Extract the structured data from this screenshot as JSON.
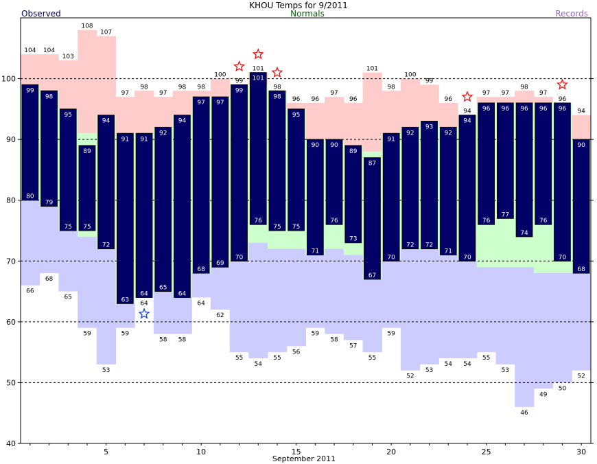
{
  "chart_data": {
    "type": "bar",
    "title": "KHOU Temps for 9/2011",
    "xlabel": "September 2011",
    "ylabel": "",
    "legend": {
      "observed": "Observed",
      "normals": "Normals",
      "records": "Records"
    },
    "colors": {
      "observed": "#000066",
      "normals_label": "#006600",
      "records_label": "#9966cc",
      "normal_fill": "#ccffcc",
      "record_high_fill": "#ffcccc",
      "record_low_fill": "#ccccff",
      "star_high": "#ee1111",
      "star_low": "#1144dd"
    },
    "ylim": [
      40,
      110
    ],
    "xlim": [
      0.5,
      30.5
    ],
    "grid_y": [
      50,
      60,
      70,
      80,
      90,
      100
    ],
    "y_ticks": [
      "40",
      "50",
      "60",
      "70",
      "80",
      "90",
      "100"
    ],
    "x_ticks": [
      "5",
      "10",
      "15",
      "20",
      "25",
      "30"
    ],
    "days": [
      1,
      2,
      3,
      4,
      5,
      6,
      7,
      8,
      9,
      10,
      11,
      12,
      13,
      14,
      15,
      16,
      17,
      18,
      19,
      20,
      21,
      22,
      23,
      24,
      25,
      26,
      27,
      28,
      29,
      30
    ],
    "observed_high": [
      99,
      98,
      95,
      89,
      94,
      91,
      91,
      92,
      94,
      97,
      97,
      99,
      101,
      98,
      95,
      90,
      90,
      89,
      87,
      91,
      92,
      93,
      92,
      94,
      96,
      96,
      96,
      96,
      96,
      90
    ],
    "observed_low": [
      80,
      79,
      75,
      75,
      72,
      63,
      64,
      65,
      64,
      68,
      69,
      70,
      76,
      75,
      75,
      71,
      76,
      73,
      67,
      70,
      72,
      72,
      71,
      70,
      76,
      77,
      74,
      76,
      70,
      68
    ],
    "normal_high": [
      99,
      98,
      95,
      91,
      94,
      91,
      91,
      92,
      94,
      97,
      97,
      99,
      99,
      98,
      95,
      90,
      90,
      89,
      88,
      91,
      92,
      93,
      92,
      94,
      96,
      96,
      96,
      96,
      96,
      90
    ],
    "normal_low": [
      80,
      79,
      75,
      74,
      72,
      63,
      64,
      65,
      64,
      68,
      69,
      70,
      73,
      72,
      72,
      71,
      72,
      71,
      67,
      70,
      72,
      72,
      71,
      70,
      69,
      69,
      69,
      68,
      68,
      68
    ],
    "record_high": [
      104,
      104,
      103,
      108,
      107,
      97,
      98,
      97,
      98,
      98,
      100,
      99,
      101,
      98,
      96,
      96,
      97,
      96,
      101,
      98,
      100,
      99,
      96,
      94,
      97,
      97,
      98,
      97,
      96,
      94
    ],
    "record_low": [
      66,
      68,
      65,
      59,
      53,
      59,
      64,
      58,
      58,
      64,
      62,
      55,
      54,
      55,
      56,
      59,
      58,
      57,
      55,
      59,
      52,
      53,
      54,
      54,
      55,
      53,
      46,
      49,
      50,
      52
    ],
    "record_high_labels": [
      "104",
      "104",
      "103",
      "108",
      "107",
      "97",
      "98",
      "97",
      "98",
      "98",
      "100",
      "99",
      "101",
      "98",
      "96",
      "96",
      "97",
      "96",
      "101",
      "98",
      "100",
      "99",
      "96",
      "94",
      "97",
      "97",
      "98",
      "97",
      "96",
      "94"
    ],
    "record_low_labels": [
      "66",
      "68",
      "65",
      "59",
      "53",
      "59",
      "64",
      "58",
      "58",
      "64",
      "62",
      "55",
      "54",
      "55",
      "56",
      "59",
      "58",
      "57",
      "55",
      "59",
      "52",
      "53",
      "54",
      "54",
      "55",
      "53",
      "46",
      "49",
      "50",
      "52"
    ],
    "observed_high_labels": [
      "99",
      "98",
      "95",
      "89",
      "94",
      "91",
      "91",
      "92",
      "94",
      "97",
      "97",
      "99",
      "101",
      "98",
      "95",
      "90",
      "90",
      "89",
      "87",
      "91",
      "92",
      "93",
      "92",
      "94",
      "96",
      "96",
      "96",
      "96",
      "96",
      "90"
    ],
    "observed_low_labels": [
      "80",
      "79",
      "75",
      "75",
      "72",
      "63",
      "64",
      "65",
      "64",
      "68",
      "69",
      "70",
      "76",
      "75",
      "75",
      "71",
      "76",
      "73",
      "67",
      "70",
      "72",
      "72",
      "71",
      "70",
      "76",
      "77",
      "74",
      "76",
      "70",
      "68"
    ],
    "record_high_stars": [
      {
        "day": 12,
        "value": 102
      },
      {
        "day": 13,
        "value": 104
      },
      {
        "day": 14,
        "value": 101
      },
      {
        "day": 24,
        "value": 97
      },
      {
        "day": 29,
        "value": 99
      }
    ],
    "record_low_stars": [
      {
        "day": 7,
        "value": 61.3
      }
    ]
  }
}
